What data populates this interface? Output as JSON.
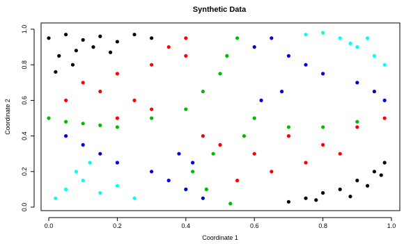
{
  "chart_data": {
    "type": "scatter",
    "title": "Synthetic Data",
    "xlabel": "Coordinate 1",
    "ylabel": "Coordinate 2",
    "xlim": [
      0.0,
      1.0
    ],
    "ylim": [
      0.0,
      1.0
    ],
    "xticks": [
      "0.0",
      "0.2",
      "0.4",
      "0.6",
      "0.8",
      "1.0"
    ],
    "yticks": [
      "0.0",
      "0.2",
      "0.4",
      "0.6",
      "0.8",
      "1.0"
    ],
    "xtick_values": [
      0.0,
      0.2,
      0.4,
      0.6,
      0.8,
      1.0
    ],
    "ytick_values": [
      0.0,
      0.2,
      0.4,
      0.6,
      0.8,
      1.0
    ],
    "grid": false,
    "legend": "none",
    "colors": {
      "black": "#000000",
      "red": "#ff0000",
      "green": "#00bb00",
      "blue": "#0000dd",
      "cyan": "#00ffff"
    },
    "series": [
      {
        "color": "black",
        "x": [
          0.0,
          0.05,
          0.1,
          0.15,
          0.2,
          0.25,
          0.3,
          0.03,
          0.08,
          0.13,
          0.02,
          0.07,
          0.18,
          0.75,
          0.8,
          0.85,
          0.9,
          0.95,
          0.98,
          0.7,
          0.78,
          0.88,
          0.93,
          0.97
        ],
        "y": [
          0.95,
          0.97,
          0.94,
          0.96,
          0.93,
          0.97,
          0.95,
          0.85,
          0.88,
          0.9,
          0.76,
          0.8,
          0.87,
          0.05,
          0.08,
          0.1,
          0.15,
          0.2,
          0.25,
          0.03,
          0.04,
          0.06,
          0.12,
          0.18
        ]
      },
      {
        "color": "red",
        "x": [
          0.1,
          0.2,
          0.3,
          0.35,
          0.4,
          0.25,
          0.15,
          0.05,
          0.45,
          0.5,
          0.6,
          0.7,
          0.8,
          0.9,
          0.98,
          0.65,
          0.75,
          0.85,
          0.55,
          0.4,
          0.3,
          0.2
        ],
        "y": [
          0.7,
          0.75,
          0.8,
          0.9,
          0.95,
          0.6,
          0.65,
          0.6,
          0.4,
          0.35,
          0.3,
          0.4,
          0.35,
          0.45,
          0.5,
          0.2,
          0.25,
          0.3,
          0.15,
          0.85,
          0.55,
          0.5
        ]
      },
      {
        "color": "green",
        "x": [
          0.0,
          0.05,
          0.1,
          0.15,
          0.2,
          0.3,
          0.4,
          0.45,
          0.5,
          0.52,
          0.55,
          0.6,
          0.7,
          0.8,
          0.9,
          0.48,
          0.42,
          0.46,
          0.53,
          0.57
        ],
        "y": [
          0.5,
          0.48,
          0.47,
          0.46,
          0.45,
          0.5,
          0.55,
          0.65,
          0.75,
          0.85,
          0.95,
          0.5,
          0.45,
          0.45,
          0.48,
          0.3,
          0.2,
          0.1,
          0.02,
          0.4
        ]
      },
      {
        "color": "blue",
        "x": [
          0.05,
          0.1,
          0.15,
          0.2,
          0.3,
          0.35,
          0.4,
          0.45,
          0.6,
          0.65,
          0.7,
          0.75,
          0.8,
          0.9,
          0.95,
          0.98,
          0.38,
          0.42,
          0.62,
          0.68
        ],
        "y": [
          0.4,
          0.35,
          0.3,
          0.25,
          0.2,
          0.15,
          0.1,
          0.05,
          0.9,
          0.95,
          0.85,
          0.8,
          0.75,
          0.7,
          0.65,
          0.6,
          0.3,
          0.25,
          0.6,
          0.65
        ]
      },
      {
        "color": "cyan",
        "x": [
          0.02,
          0.05,
          0.1,
          0.15,
          0.2,
          0.25,
          0.08,
          0.12,
          0.8,
          0.85,
          0.9,
          0.95,
          0.98,
          0.75,
          0.88,
          0.93
        ],
        "y": [
          0.05,
          0.1,
          0.15,
          0.08,
          0.12,
          0.05,
          0.2,
          0.25,
          0.98,
          0.95,
          0.9,
          0.85,
          0.8,
          0.97,
          0.92,
          0.95
        ]
      }
    ]
  }
}
